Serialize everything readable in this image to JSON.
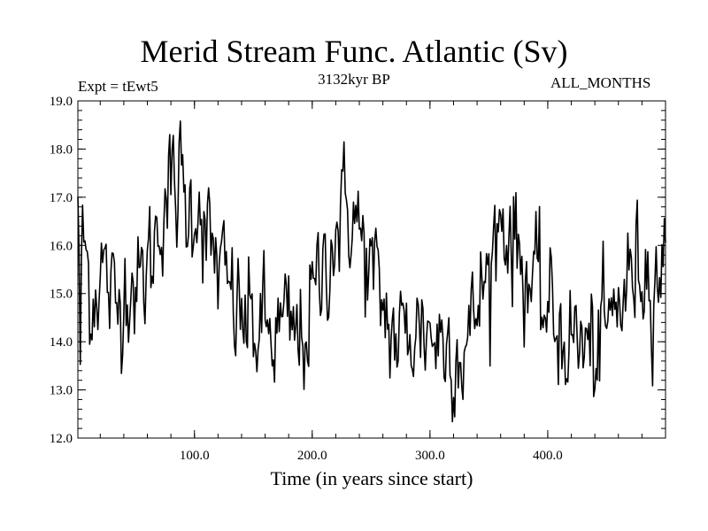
{
  "chart_data": {
    "type": "line",
    "title": "Merid Stream Func. Atlantic (Sv)",
    "subtitle": "3132kyr BP",
    "expt_label": "Expt = tEwt5",
    "period_label": "ALL_MONTHS",
    "xlabel": "Time (in years since start)",
    "ylabel": "",
    "xlim": [
      1,
      500
    ],
    "ylim": [
      12.0,
      19.0
    ],
    "xticks": [
      100.0,
      200.0,
      300.0,
      400.0
    ],
    "xtick_labels": [
      "100.0",
      "200.0",
      "300.0",
      "400.0"
    ],
    "yticks": [
      12.0,
      13.0,
      14.0,
      15.0,
      16.0,
      17.0,
      18.0,
      19.0
    ],
    "ytick_labels": [
      "12.0",
      "13.0",
      "14.0",
      "15.0",
      "16.0",
      "17.0",
      "18.0",
      "19.0"
    ],
    "grid": false,
    "series": [
      {
        "name": "Merid Stream Func. Atlantic",
        "anchor_x": [
          1,
          3,
          5,
          8,
          12,
          18,
          22,
          28,
          34,
          40,
          46,
          52,
          58,
          64,
          70,
          74,
          78,
          84,
          88,
          92,
          96,
          100,
          104,
          108,
          112,
          118,
          124,
          130,
          136,
          140,
          146,
          152,
          158,
          164,
          170,
          176,
          182,
          188,
          194,
          200,
          206,
          212,
          218,
          224,
          230,
          234,
          238,
          244,
          250,
          256,
          262,
          266,
          272,
          278,
          284,
          290,
          294,
          300,
          306,
          312,
          318,
          324,
          330,
          336,
          340,
          344,
          348,
          352,
          356,
          360,
          364,
          370,
          376,
          382,
          388,
          394,
          400,
          406,
          412,
          418,
          424,
          430,
          436,
          442,
          448,
          454,
          460,
          466,
          472,
          478,
          484,
          490,
          496,
          500
        ],
        "anchor_y": [
          17.2,
          13.6,
          16.3,
          15.8,
          14.9,
          15.3,
          15.6,
          15.0,
          14.6,
          15.2,
          15.4,
          15.0,
          15.4,
          15.8,
          16.5,
          17.0,
          17.2,
          17.0,
          17.4,
          16.8,
          16.7,
          16.9,
          17.1,
          16.4,
          16.0,
          15.7,
          15.3,
          15.0,
          14.6,
          14.5,
          14.4,
          14.2,
          14.3,
          14.1,
          14.1,
          14.3,
          14.2,
          14.0,
          14.2,
          14.8,
          15.2,
          15.8,
          16.2,
          16.5,
          16.8,
          16.7,
          16.4,
          15.9,
          15.4,
          15.0,
          14.6,
          14.3,
          14.0,
          14.1,
          14.2,
          14.3,
          14.4,
          14.2,
          14.1,
          14.0,
          14.0,
          13.8,
          13.9,
          14.2,
          14.8,
          15.1,
          15.3,
          15.6,
          16.3,
          16.6,
          16.5,
          16.2,
          15.8,
          15.4,
          15.1,
          14.8,
          14.6,
          14.4,
          14.2,
          14.0,
          14.1,
          13.9,
          13.8,
          13.8,
          14.1,
          14.4,
          14.8,
          15.1,
          15.4,
          15.6,
          15.5,
          15.4,
          15.6,
          15.5
        ],
        "stats": {
          "min": 12.2,
          "max": 18.7
        }
      }
    ]
  }
}
